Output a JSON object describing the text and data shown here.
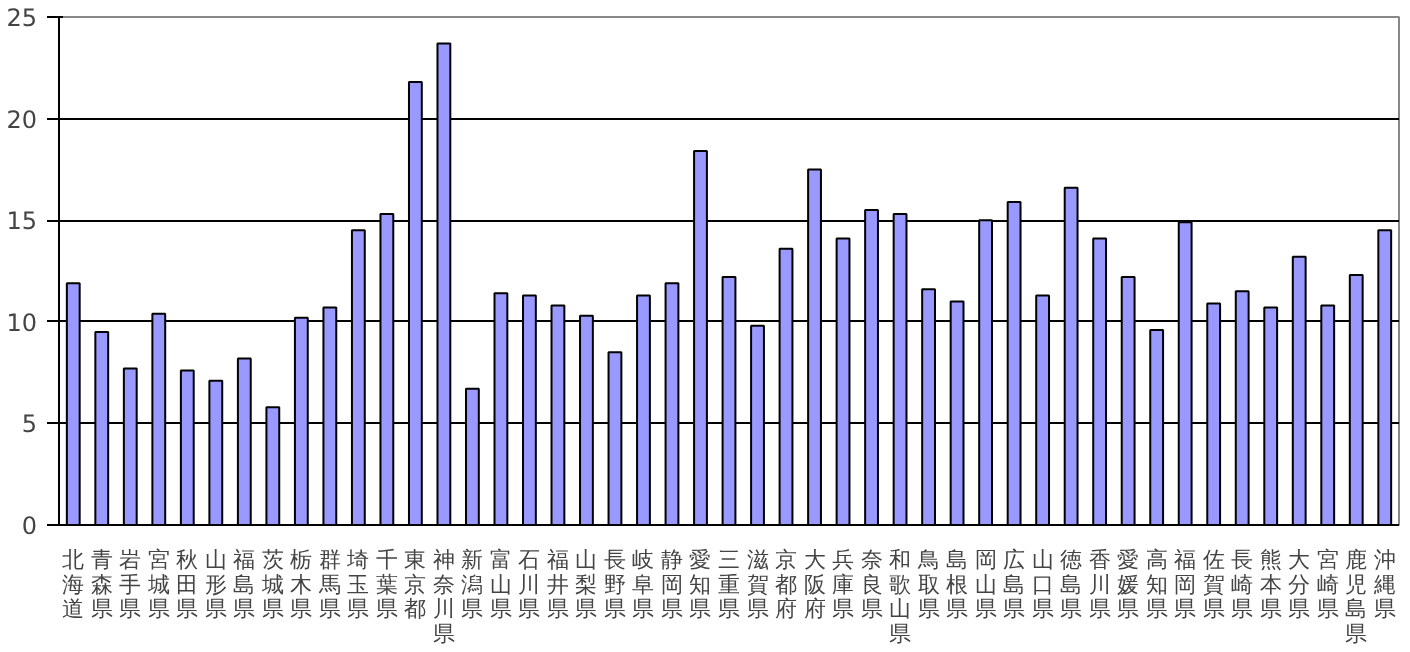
{
  "chart_data": {
    "type": "bar",
    "categories": [
      "北海道",
      "青森県",
      "岩手県",
      "宮城県",
      "秋田県",
      "山形県",
      "福島県",
      "茨城県",
      "栃木県",
      "群馬県",
      "埼玉県",
      "千葉県",
      "東京都",
      "神奈川県",
      "新潟県",
      "富山県",
      "石川県",
      "福井県",
      "山梨県",
      "長野県",
      "岐阜県",
      "静岡県",
      "愛知県",
      "三重県",
      "滋賀県",
      "京都府",
      "大阪府",
      "兵庫県",
      "奈良県",
      "和歌山県",
      "鳥取県",
      "島根県",
      "岡山県",
      "広島県",
      "山口県",
      "徳島県",
      "香川県",
      "愛媛県",
      "高知県",
      "福岡県",
      "佐賀県",
      "長崎県",
      "熊本県",
      "大分県",
      "宮崎県",
      "鹿児島県",
      "沖縄県"
    ],
    "values": [
      11.9,
      9.5,
      7.7,
      10.4,
      7.6,
      7.1,
      8.2,
      5.8,
      10.2,
      10.7,
      14.5,
      15.3,
      21.8,
      23.7,
      6.7,
      11.4,
      11.3,
      10.8,
      10.3,
      8.5,
      11.3,
      11.9,
      18.4,
      12.2,
      9.8,
      13.6,
      17.5,
      14.1,
      15.5,
      15.3,
      11.6,
      11.0,
      15.0,
      15.9,
      11.3,
      16.6,
      14.1,
      12.2,
      9.6,
      14.9,
      10.9,
      11.5,
      10.7,
      13.2,
      10.8,
      12.3,
      14.5
    ],
    "color": "#9999ff",
    "ylim": [
      0,
      25
    ],
    "yticks": [
      0,
      5,
      10,
      15,
      20,
      25
    ],
    "grid": "y"
  }
}
